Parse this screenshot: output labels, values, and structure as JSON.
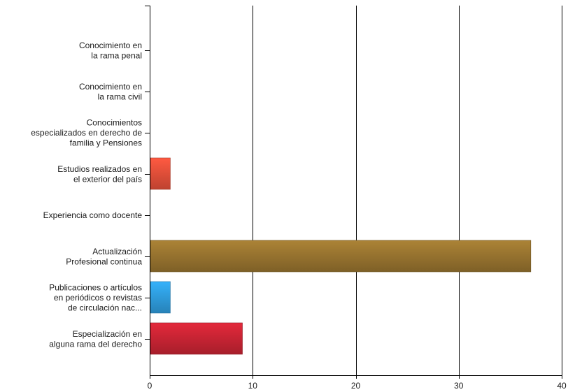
{
  "chart_data": {
    "type": "bar",
    "orientation": "horizontal",
    "categories": [
      [
        "Conocimiento en",
        "la rama penal"
      ],
      [
        "Conocimiento en",
        "la rama civil"
      ],
      [
        "Conocimientos",
        "especializados en derecho de",
        "familia y Pensiones"
      ],
      [
        "Estudios realizados en",
        "el exterior del país"
      ],
      [
        "Experiencia como docente"
      ],
      [
        "Actualización",
        "Profesional continua"
      ],
      [
        "Publicaciones o artículos",
        "en periódicos o revistas",
        "de circulación nac..."
      ],
      [
        "Especialización en",
        "alguna rama del derecho"
      ]
    ],
    "values": [
      0,
      0,
      0,
      2,
      0,
      37,
      2,
      9
    ],
    "colors": [
      "#c0c0c0",
      "#c0c0c0",
      "#c0c0c0",
      "#e8503a",
      "#c0c0c0",
      "#9a7530",
      "#2f9fe0",
      "#cc2535"
    ],
    "xlim": [
      0,
      40
    ],
    "xticks": [
      0,
      10,
      20,
      30,
      40
    ],
    "grid": true,
    "title": "",
    "xlabel": "",
    "ylabel": ""
  }
}
